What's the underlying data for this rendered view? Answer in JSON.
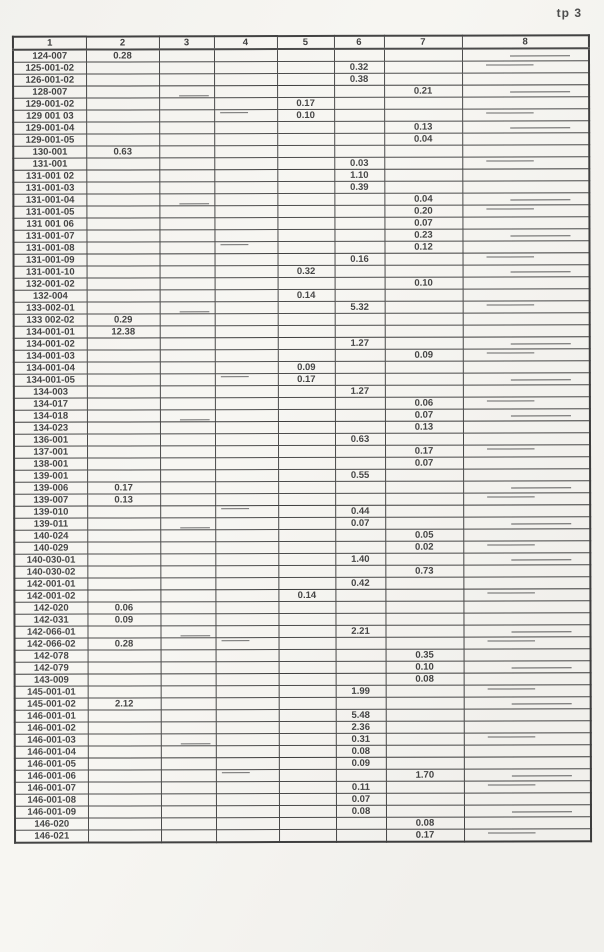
{
  "page_label": "tp 3",
  "table": {
    "columns": [
      "1",
      "2",
      "3",
      "4",
      "5",
      "6",
      "7",
      "8"
    ],
    "rows": [
      [
        "124-007",
        "0.28",
        "",
        "",
        "",
        "",
        "",
        ""
      ],
      [
        "125-001-02",
        "",
        "",
        "",
        "",
        "0.32",
        "",
        ""
      ],
      [
        "126-001-02",
        "",
        "",
        "",
        "",
        "0.38",
        "",
        ""
      ],
      [
        "128-007",
        "",
        "",
        "",
        "",
        "",
        "0.21",
        ""
      ],
      [
        "129-001-02",
        "",
        "",
        "",
        "0.17",
        "",
        "",
        ""
      ],
      [
        "129 001 03",
        "",
        "",
        "",
        "0.10",
        "",
        "",
        ""
      ],
      [
        "129-001-04",
        "",
        "",
        "",
        "",
        "",
        "0.13",
        ""
      ],
      [
        "129-001-05",
        "",
        "",
        "",
        "",
        "",
        "0.04",
        ""
      ],
      [
        "130-001",
        "0.63",
        "",
        "",
        "",
        "",
        "",
        ""
      ],
      [
        "131-001",
        "",
        "",
        "",
        "",
        "0.03",
        "",
        ""
      ],
      [
        "131-001 02",
        "",
        "",
        "",
        "",
        "1.10",
        "",
        ""
      ],
      [
        "131-001-03",
        "",
        "",
        "",
        "",
        "0.39",
        "",
        ""
      ],
      [
        "131-001-04",
        "",
        "",
        "",
        "",
        "",
        "0.04",
        ""
      ],
      [
        "131-001-05",
        "",
        "",
        "",
        "",
        "",
        "0.20",
        ""
      ],
      [
        "131 001 06",
        "",
        "",
        "",
        "",
        "",
        "0.07",
        ""
      ],
      [
        "131-001-07",
        "",
        "",
        "",
        "",
        "",
        "0.23",
        ""
      ],
      [
        "131-001-08",
        "",
        "",
        "",
        "",
        "",
        "0.12",
        ""
      ],
      [
        "131-001-09",
        "",
        "",
        "",
        "",
        "0.16",
        "",
        ""
      ],
      [
        "131-001-10",
        "",
        "",
        "",
        "0.32",
        "",
        "",
        ""
      ],
      [
        "132-001-02",
        "",
        "",
        "",
        "",
        "",
        "0.10",
        ""
      ],
      [
        "132-004",
        "",
        "",
        "",
        "0.14",
        "",
        "",
        ""
      ],
      [
        "133-002-01",
        "",
        "",
        "",
        "",
        "5.32",
        "",
        ""
      ],
      [
        "133 002-02",
        "0.29",
        "",
        "",
        "",
        "",
        "",
        ""
      ],
      [
        "134-001-01",
        "12.38",
        "",
        "",
        "",
        "",
        "",
        ""
      ],
      [
        "134-001-02",
        "",
        "",
        "",
        "",
        "1.27",
        "",
        ""
      ],
      [
        "134-001-03",
        "",
        "",
        "",
        "",
        "",
        "0.09",
        ""
      ],
      [
        "134-001-04",
        "",
        "",
        "",
        "0.09",
        "",
        "",
        ""
      ],
      [
        "134-001-05",
        "",
        "",
        "",
        "0.17",
        "",
        "",
        ""
      ],
      [
        "134-003",
        "",
        "",
        "",
        "",
        "1.27",
        "",
        ""
      ],
      [
        "134-017",
        "",
        "",
        "",
        "",
        "",
        "0.06",
        ""
      ],
      [
        "134-018",
        "",
        "",
        "",
        "",
        "",
        "0.07",
        ""
      ],
      [
        "134-023",
        "",
        "",
        "",
        "",
        "",
        "0.13",
        ""
      ],
      [
        "136-001",
        "",
        "",
        "",
        "",
        "0.63",
        "",
        ""
      ],
      [
        "137-001",
        "",
        "",
        "",
        "",
        "",
        "0.17",
        ""
      ],
      [
        "138-001",
        "",
        "",
        "",
        "",
        "",
        "0.07",
        ""
      ],
      [
        "139-001",
        "",
        "",
        "",
        "",
        "0.55",
        "",
        ""
      ],
      [
        "139-006",
        "0.17",
        "",
        "",
        "",
        "",
        "",
        ""
      ],
      [
        "139-007",
        "0.13",
        "",
        "",
        "",
        "",
        "",
        ""
      ],
      [
        "139-010",
        "",
        "",
        "",
        "",
        "0.44",
        "",
        ""
      ],
      [
        "139-011",
        "",
        "",
        "",
        "",
        "0.07",
        "",
        ""
      ],
      [
        "140-024",
        "",
        "",
        "",
        "",
        "",
        "0.05",
        ""
      ],
      [
        "140-029",
        "",
        "",
        "",
        "",
        "",
        "0.02",
        ""
      ],
      [
        "140-030-01",
        "",
        "",
        "",
        "",
        "1.40",
        "",
        ""
      ],
      [
        "140-030-02",
        "",
        "",
        "",
        "",
        "",
        "0.73",
        ""
      ],
      [
        "142-001-01",
        "",
        "",
        "",
        "",
        "0.42",
        "",
        ""
      ],
      [
        "142-001-02",
        "",
        "",
        "",
        "0.14",
        "",
        "",
        ""
      ],
      [
        "142-020",
        "0.06",
        "",
        "",
        "",
        "",
        "",
        ""
      ],
      [
        "142-031",
        "0.09",
        "",
        "",
        "",
        "",
        "",
        ""
      ],
      [
        "142-066-01",
        "",
        "",
        "",
        "",
        "2.21",
        "",
        ""
      ],
      [
        "142-066-02",
        "0.28",
        "",
        "",
        "",
        "",
        "",
        ""
      ],
      [
        "142-078",
        "",
        "",
        "",
        "",
        "",
        "0.35",
        ""
      ],
      [
        "142-079",
        "",
        "",
        "",
        "",
        "",
        "0.10",
        ""
      ],
      [
        "143-009",
        "",
        "",
        "",
        "",
        "",
        "0.08",
        ""
      ],
      [
        "145-001-01",
        "",
        "",
        "",
        "",
        "1.99",
        "",
        ""
      ],
      [
        "145-001-02",
        "2.12",
        "",
        "",
        "",
        "",
        "",
        ""
      ],
      [
        "146-001-01",
        "",
        "",
        "",
        "",
        "5.48",
        "",
        ""
      ],
      [
        "146-001-02",
        "",
        "",
        "",
        "",
        "2.36",
        "",
        ""
      ],
      [
        "146-001-03",
        "",
        "",
        "",
        "",
        "0.31",
        "",
        ""
      ],
      [
        "146-001-04",
        "",
        "",
        "",
        "",
        "0.08",
        "",
        ""
      ],
      [
        "146-001-05",
        "",
        "",
        "",
        "",
        "0.09",
        "",
        ""
      ],
      [
        "146-001-06",
        "",
        "",
        "",
        "",
        "",
        "1.70",
        ""
      ],
      [
        "146-001-07",
        "",
        "",
        "",
        "",
        "0.11",
        "",
        ""
      ],
      [
        "146-001-08",
        "",
        "",
        "",
        "",
        "0.07",
        "",
        ""
      ],
      [
        "146-001-09",
        "",
        "",
        "",
        "",
        "0.08",
        "",
        ""
      ],
      [
        "146-020",
        "",
        "",
        "",
        "",
        "",
        "0.08",
        ""
      ],
      [
        "146-021",
        "",
        "",
        "",
        "",
        "",
        "0.17",
        ""
      ]
    ]
  }
}
